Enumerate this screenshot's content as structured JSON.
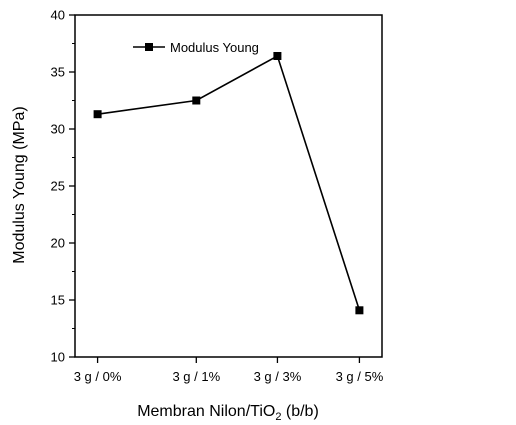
{
  "chart_data": {
    "type": "line",
    "title": "",
    "xlabel_main": "Membran Nilon/TiO",
    "xlabel_sub": "2",
    "xlabel_tail": " (b/b)",
    "ylabel": "Modulus Young (MPa)",
    "categories": [
      "3 g / 0%",
      "3 g / 1%",
      "3 g / 3%",
      "3 g / 5%"
    ],
    "series": [
      {
        "name": "Modulus Young",
        "values": [
          31.3,
          32.5,
          36.4,
          14.1
        ],
        "color": "#000000",
        "marker": "square"
      }
    ],
    "ylim": [
      10,
      40
    ],
    "yticks": [
      10,
      15,
      20,
      25,
      30,
      35,
      40
    ],
    "grid": false,
    "legend_position": "top-left"
  }
}
